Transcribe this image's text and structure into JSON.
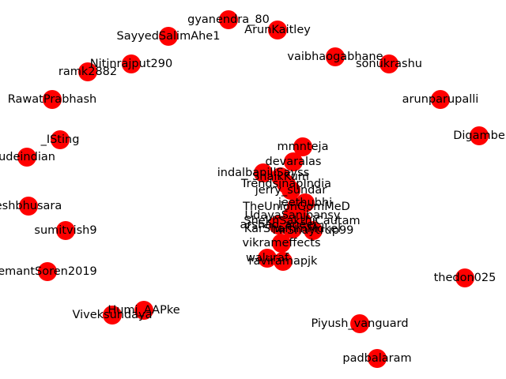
{
  "colors": {
    "background": "#ffffff",
    "node_fill": "#ff0000",
    "label": "#000000"
  },
  "chart_data": {
    "type": "network",
    "nodes": [
      "gyanendra_80",
      "SayyedSalimAhe1",
      "ArunKaitley",
      "Nitinrajput290",
      "ramk2882",
      "vaibhaogabhane",
      "sonukrashu",
      "RawatPrabhash",
      "arunparupalli",
      "_ISting",
      "udeindian",
      "Digambe",
      "mmnteja",
      "devaralas",
      "indalbapillSayss",
      "ShaikKum",
      "TrendsinapIndia",
      "jerry_sundar",
      "jeethubhi",
      "TheUnionGomMeD",
      "UdayaSanjbansy",
      "ShekhSakthiCautam",
      "arshad_aneei",
      "KarShafnmMdkel",
      "MrShaytrup99",
      "eshbhusara",
      "sumitvish9",
      "vikrameffects",
      "waluraf",
      "raviramapjk",
      "emantSoren2019",
      "thedon025",
      "Humi_AAPke",
      "Viveksundaya",
      "Piyush_vanguard",
      "padbalaram"
    ]
  }
}
